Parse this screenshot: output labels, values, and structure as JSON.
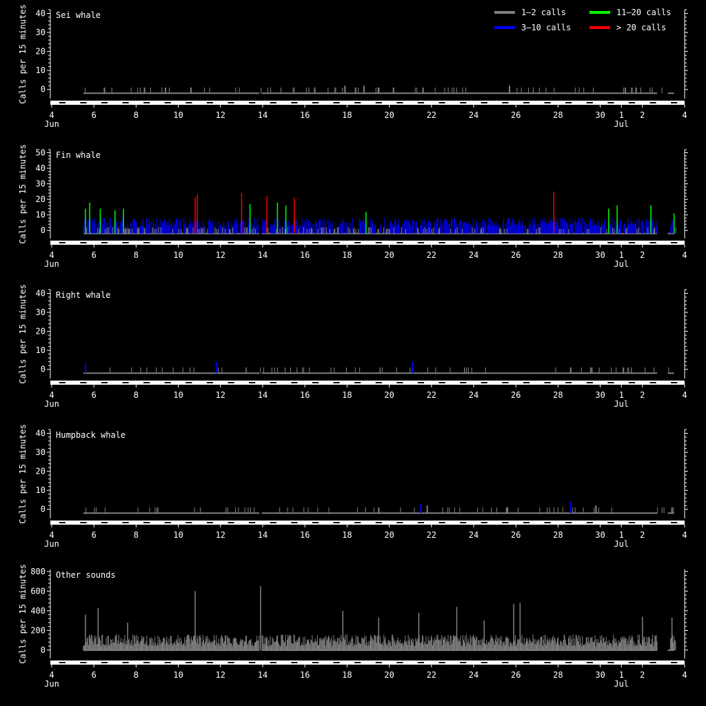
{
  "legend": [
    {
      "label": "1–2 calls",
      "color": "#808080"
    },
    {
      "label": "3–10 calls",
      "color": "#0000ff"
    },
    {
      "label": "11–20 calls",
      "color": "#00ff00"
    },
    {
      "label": "> 20 calls",
      "color": "#ff0000"
    }
  ],
  "ylabel": "Calls per 15 minutes",
  "xaxis": {
    "ticks": [
      "4",
      "6",
      "8",
      "10",
      "12",
      "14",
      "16",
      "18",
      "20",
      "22",
      "24",
      "26",
      "28",
      "30",
      "1",
      "2",
      "4"
    ],
    "tick_days": [
      4,
      6,
      8,
      10,
      12,
      14,
      16,
      18,
      20,
      22,
      24,
      26,
      28,
      30,
      31,
      32,
      34
    ],
    "month_labels": [
      {
        "day": 4,
        "label": "Jun"
      },
      {
        "day": 31,
        "label": "Jul"
      }
    ]
  },
  "chart_data": [
    {
      "type": "bar",
      "title": "Sei whale",
      "yticks": [
        0,
        10,
        20,
        30,
        40
      ],
      "ylim": [
        -3,
        42
      ],
      "spikes": [
        {
          "day": 6.5,
          "calls": 1
        },
        {
          "day": 8.4,
          "calls": 1
        },
        {
          "day": 10.6,
          "calls": 1
        },
        {
          "day": 17.9,
          "calls": 2
        },
        {
          "day": 18.4,
          "calls": 1
        },
        {
          "day": 18.8,
          "calls": 2
        },
        {
          "day": 19.5,
          "calls": 1
        },
        {
          "day": 20.2,
          "calls": 1
        },
        {
          "day": 21.6,
          "calls": 1
        },
        {
          "day": 25.7,
          "calls": 2
        },
        {
          "day": 31.5,
          "calls": 1
        },
        {
          "day": 31.7,
          "calls": 1
        }
      ]
    },
    {
      "type": "bar",
      "title": "Fin whale",
      "yticks": [
        0,
        10,
        20,
        30,
        40,
        50
      ],
      "ylim": [
        -3,
        52
      ],
      "notable_spikes": [
        {
          "day": 5.6,
          "calls": 14
        },
        {
          "day": 5.8,
          "calls": 18
        },
        {
          "day": 6.3,
          "calls": 14
        },
        {
          "day": 7.0,
          "calls": 13
        },
        {
          "day": 7.4,
          "calls": 14
        },
        {
          "day": 10.8,
          "calls": 21
        },
        {
          "day": 10.9,
          "calls": 23
        },
        {
          "day": 13.0,
          "calls": 24
        },
        {
          "day": 13.4,
          "calls": 17
        },
        {
          "day": 14.2,
          "calls": 22
        },
        {
          "day": 14.7,
          "calls": 18
        },
        {
          "day": 15.1,
          "calls": 16
        },
        {
          "day": 15.5,
          "calls": 21
        },
        {
          "day": 18.9,
          "calls": 12
        },
        {
          "day": 27.8,
          "calls": 25
        },
        {
          "day": 30.4,
          "calls": 14
        },
        {
          "day": 30.8,
          "calls": 16
        },
        {
          "day": 32.4,
          "calls": 16
        },
        {
          "day": 33.5,
          "calls": 11
        }
      ]
    },
    {
      "type": "bar",
      "title": "Right whale",
      "yticks": [
        0,
        10,
        20,
        30,
        40
      ],
      "ylim": [
        -3,
        42
      ],
      "spikes": [
        {
          "day": 5.6,
          "calls": 3
        },
        {
          "day": 11.8,
          "calls": 4
        },
        {
          "day": 21.1,
          "calls": 4
        },
        {
          "day": 28.6,
          "calls": 1
        },
        {
          "day": 29.6,
          "calls": 1
        },
        {
          "day": 31.1,
          "calls": 1
        }
      ]
    },
    {
      "type": "bar",
      "title": "Humpback whale",
      "yticks": [
        0,
        10,
        20,
        30,
        40
      ],
      "ylim": [
        -3,
        42
      ],
      "spikes": [
        {
          "day": 19.5,
          "calls": 1
        },
        {
          "day": 21.5,
          "calls": 3
        },
        {
          "day": 21.8,
          "calls": 2
        },
        {
          "day": 25.6,
          "calls": 1
        },
        {
          "day": 28.6,
          "calls": 4
        },
        {
          "day": 29.8,
          "calls": 2
        },
        {
          "day": 33.4,
          "calls": 1
        }
      ]
    },
    {
      "type": "bar",
      "title": "Other sounds",
      "yticks": [
        0,
        200,
        400,
        600,
        800
      ],
      "ylim": [
        -50,
        820
      ],
      "peaks": [
        {
          "day": 5.6,
          "calls": 360
        },
        {
          "day": 6.2,
          "calls": 430
        },
        {
          "day": 7.6,
          "calls": 280
        },
        {
          "day": 10.8,
          "calls": 600
        },
        {
          "day": 13.9,
          "calls": 650
        },
        {
          "day": 17.8,
          "calls": 400
        },
        {
          "day": 19.5,
          "calls": 330
        },
        {
          "day": 21.4,
          "calls": 380
        },
        {
          "day": 23.2,
          "calls": 440
        },
        {
          "day": 24.5,
          "calls": 300
        },
        {
          "day": 25.9,
          "calls": 470
        },
        {
          "day": 26.2,
          "calls": 480
        },
        {
          "day": 32.0,
          "calls": 340
        },
        {
          "day": 33.4,
          "calls": 330
        }
      ]
    }
  ]
}
